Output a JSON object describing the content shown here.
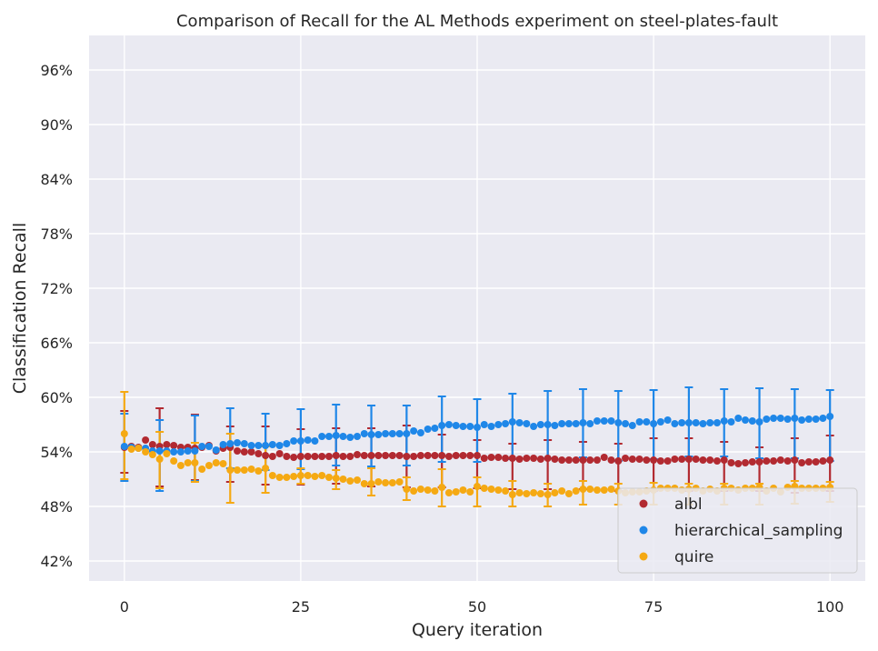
{
  "chart_data": {
    "type": "scatter",
    "title": "Comparison of Recall for the AL Methods experiment on steel-plates-fault",
    "xlabel": "Query iteration",
    "ylabel": "Classification Recall",
    "xlim": [
      -5,
      105
    ],
    "ylim": [
      0.398,
      0.998
    ],
    "xticks": [
      0,
      25,
      50,
      75,
      100
    ],
    "xtick_labels": [
      "0",
      "25",
      "50",
      "75",
      "100"
    ],
    "yticks": [
      0.42,
      0.48,
      0.54,
      0.6,
      0.66,
      0.72,
      0.78,
      0.84,
      0.9,
      0.96
    ],
    "ytick_labels": [
      "42%",
      "48%",
      "54%",
      "60%",
      "66%",
      "72%",
      "78%",
      "84%",
      "90%",
      "96%"
    ],
    "grid": true,
    "legend_position": "bottom-right",
    "errorbar_every": 5,
    "series": [
      {
        "name": "albl",
        "color": "#b22a31",
        "values": [
          0.545,
          0.546,
          0.545,
          0.553,
          0.548,
          0.546,
          0.548,
          0.547,
          0.545,
          0.545,
          0.544,
          0.545,
          0.547,
          0.541,
          0.544,
          0.545,
          0.541,
          0.54,
          0.54,
          0.538,
          0.536,
          0.535,
          0.538,
          0.535,
          0.534,
          0.535,
          0.535,
          0.535,
          0.535,
          0.535,
          0.536,
          0.535,
          0.535,
          0.537,
          0.536,
          0.536,
          0.536,
          0.536,
          0.536,
          0.536,
          0.535,
          0.535,
          0.536,
          0.536,
          0.536,
          0.536,
          0.535,
          0.536,
          0.536,
          0.536,
          0.536,
          0.533,
          0.534,
          0.534,
          0.533,
          0.533,
          0.532,
          0.533,
          0.533,
          0.532,
          0.533,
          0.532,
          0.531,
          0.531,
          0.531,
          0.531,
          0.531,
          0.531,
          0.534,
          0.531,
          0.53,
          0.533,
          0.532,
          0.532,
          0.531,
          0.531,
          0.53,
          0.53,
          0.532,
          0.532,
          0.532,
          0.532,
          0.531,
          0.531,
          0.53,
          0.531,
          0.528,
          0.527,
          0.528,
          0.529,
          0.529,
          0.53,
          0.53,
          0.531,
          0.53,
          0.531,
          0.528,
          0.529,
          0.529,
          0.53,
          0.531
        ],
        "err_low": [
          0.517,
          0.517,
          0.517,
          0.517,
          0.517,
          0.502,
          0.502,
          0.502,
          0.502,
          0.502,
          0.509,
          0.509,
          0.509,
          0.509,
          0.509,
          0.507,
          0.507,
          0.507,
          0.507,
          0.507,
          0.504,
          0.504,
          0.504,
          0.504,
          0.504,
          0.504,
          0.504,
          0.504,
          0.504,
          0.504,
          0.505,
          0.505,
          0.505,
          0.505,
          0.505,
          0.502,
          0.502,
          0.502,
          0.502,
          0.502,
          0.501,
          0.501,
          0.501,
          0.501,
          0.501,
          0.501,
          0.501,
          0.501,
          0.501,
          0.501,
          0.5,
          0.5,
          0.5,
          0.5,
          0.5,
          0.499,
          0.499,
          0.499,
          0.499,
          0.499,
          0.499,
          0.499,
          0.499,
          0.499,
          0.499,
          0.499,
          0.499,
          0.499,
          0.499,
          0.499,
          0.497,
          0.497,
          0.497,
          0.497,
          0.497,
          0.497,
          0.497,
          0.497,
          0.497,
          0.497,
          0.497,
          0.497,
          0.497,
          0.497,
          0.497,
          0.497,
          0.497,
          0.497,
          0.497,
          0.497,
          0.497,
          0.497,
          0.497,
          0.497,
          0.497,
          0.495,
          0.495,
          0.495,
          0.495,
          0.495,
          0.497
        ],
        "err_high": [
          0.585,
          0.585,
          0.585,
          0.585,
          0.585,
          0.588,
          0.588,
          0.588,
          0.588,
          0.588,
          0.581,
          0.581,
          0.581,
          0.581,
          0.581,
          0.568,
          0.568,
          0.568,
          0.568,
          0.568,
          0.568,
          0.568,
          0.568,
          0.568,
          0.568,
          0.565,
          0.565,
          0.565,
          0.565,
          0.565,
          0.566,
          0.566,
          0.566,
          0.566,
          0.566,
          0.566,
          0.566,
          0.566,
          0.566,
          0.566,
          0.569,
          0.569,
          0.569,
          0.569,
          0.569,
          0.559,
          0.559,
          0.559,
          0.559,
          0.559,
          0.553,
          0.553,
          0.553,
          0.553,
          0.553,
          0.549,
          0.549,
          0.549,
          0.549,
          0.549,
          0.553,
          0.553,
          0.553,
          0.553,
          0.553,
          0.551,
          0.551,
          0.551,
          0.551,
          0.551,
          0.549,
          0.549,
          0.549,
          0.549,
          0.549,
          0.555,
          0.555,
          0.555,
          0.555,
          0.555,
          0.555,
          0.555,
          0.555,
          0.555,
          0.555,
          0.551,
          0.551,
          0.551,
          0.551,
          0.551,
          0.545,
          0.545,
          0.545,
          0.545,
          0.545,
          0.555,
          0.555,
          0.555,
          0.555,
          0.555,
          0.558
        ]
      },
      {
        "name": "hierarchical_sampling",
        "color": "#1f87e8",
        "values": [
          0.546,
          0.545,
          0.544,
          0.544,
          0.541,
          0.541,
          0.541,
          0.54,
          0.54,
          0.541,
          0.541,
          0.546,
          0.546,
          0.542,
          0.548,
          0.549,
          0.55,
          0.549,
          0.547,
          0.547,
          0.547,
          0.548,
          0.547,
          0.549,
          0.552,
          0.552,
          0.553,
          0.552,
          0.557,
          0.557,
          0.558,
          0.557,
          0.556,
          0.557,
          0.56,
          0.559,
          0.559,
          0.56,
          0.56,
          0.56,
          0.56,
          0.563,
          0.561,
          0.565,
          0.566,
          0.569,
          0.57,
          0.569,
          0.568,
          0.568,
          0.567,
          0.57,
          0.568,
          0.57,
          0.571,
          0.573,
          0.572,
          0.571,
          0.568,
          0.57,
          0.57,
          0.569,
          0.571,
          0.571,
          0.571,
          0.572,
          0.571,
          0.574,
          0.574,
          0.574,
          0.572,
          0.571,
          0.569,
          0.573,
          0.573,
          0.571,
          0.573,
          0.575,
          0.571,
          0.572,
          0.572,
          0.572,
          0.571,
          0.572,
          0.572,
          0.574,
          0.573,
          0.577,
          0.575,
          0.574,
          0.573,
          0.576,
          0.577,
          0.577,
          0.576,
          0.577,
          0.575,
          0.576,
          0.576,
          0.577,
          0.579
        ],
        "err_low": [
          0.508,
          0.508,
          0.508,
          0.508,
          0.508,
          0.497,
          0.497,
          0.497,
          0.497,
          0.497,
          0.508,
          0.508,
          0.508,
          0.508,
          0.508,
          0.522,
          0.522,
          0.522,
          0.522,
          0.522,
          0.52,
          0.52,
          0.52,
          0.52,
          0.52,
          0.521,
          0.521,
          0.521,
          0.521,
          0.521,
          0.525,
          0.525,
          0.525,
          0.525,
          0.525,
          0.524,
          0.524,
          0.524,
          0.524,
          0.524,
          0.525,
          0.525,
          0.525,
          0.525,
          0.525,
          0.529,
          0.529,
          0.529,
          0.529,
          0.529,
          0.529,
          0.529,
          0.529,
          0.529,
          0.529,
          0.532,
          0.532,
          0.532,
          0.532,
          0.532,
          0.533,
          0.533,
          0.533,
          0.533,
          0.533,
          0.534,
          0.534,
          0.534,
          0.534,
          0.534,
          0.53,
          0.53,
          0.53,
          0.53,
          0.53,
          0.532,
          0.532,
          0.532,
          0.532,
          0.532,
          0.535,
          0.535,
          0.535,
          0.535,
          0.535,
          0.535,
          0.535,
          0.535,
          0.535,
          0.535,
          0.533,
          0.533,
          0.533,
          0.533,
          0.533,
          0.533,
          0.533,
          0.533,
          0.533,
          0.533,
          0.53
        ],
        "err_high": [
          0.582,
          0.582,
          0.582,
          0.582,
          0.582,
          0.575,
          0.575,
          0.575,
          0.575,
          0.575,
          0.58,
          0.58,
          0.58,
          0.58,
          0.58,
          0.588,
          0.588,
          0.588,
          0.588,
          0.588,
          0.582,
          0.582,
          0.582,
          0.582,
          0.582,
          0.587,
          0.587,
          0.587,
          0.587,
          0.587,
          0.592,
          0.592,
          0.592,
          0.592,
          0.592,
          0.591,
          0.591,
          0.591,
          0.591,
          0.591,
          0.591,
          0.591,
          0.591,
          0.591,
          0.591,
          0.601,
          0.601,
          0.601,
          0.601,
          0.601,
          0.598,
          0.598,
          0.598,
          0.598,
          0.598,
          0.604,
          0.604,
          0.604,
          0.604,
          0.604,
          0.607,
          0.607,
          0.607,
          0.607,
          0.607,
          0.609,
          0.609,
          0.609,
          0.609,
          0.609,
          0.607,
          0.607,
          0.607,
          0.607,
          0.607,
          0.608,
          0.608,
          0.608,
          0.608,
          0.608,
          0.611,
          0.611,
          0.611,
          0.611,
          0.611,
          0.609,
          0.609,
          0.609,
          0.609,
          0.609,
          0.61,
          0.61,
          0.61,
          0.61,
          0.61,
          0.609,
          0.609,
          0.609,
          0.609,
          0.609,
          0.608
        ]
      },
      {
        "name": "quire",
        "color": "#f5a913",
        "values": [
          0.56,
          0.543,
          0.544,
          0.54,
          0.537,
          0.532,
          0.538,
          0.53,
          0.525,
          0.528,
          0.528,
          0.521,
          0.525,
          0.528,
          0.527,
          0.52,
          0.52,
          0.52,
          0.521,
          0.519,
          0.522,
          0.514,
          0.512,
          0.512,
          0.513,
          0.514,
          0.514,
          0.513,
          0.514,
          0.512,
          0.511,
          0.51,
          0.508,
          0.509,
          0.505,
          0.505,
          0.507,
          0.506,
          0.506,
          0.507,
          0.499,
          0.497,
          0.499,
          0.498,
          0.497,
          0.501,
          0.495,
          0.496,
          0.498,
          0.496,
          0.502,
          0.5,
          0.499,
          0.498,
          0.497,
          0.493,
          0.495,
          0.494,
          0.495,
          0.494,
          0.493,
          0.495,
          0.497,
          0.494,
          0.497,
          0.499,
          0.499,
          0.498,
          0.498,
          0.499,
          0.497,
          0.495,
          0.496,
          0.496,
          0.497,
          0.498,
          0.5,
          0.5,
          0.5,
          0.498,
          0.499,
          0.5,
          0.497,
          0.499,
          0.497,
          0.5,
          0.5,
          0.498,
          0.5,
          0.5,
          0.501,
          0.497,
          0.5,
          0.496,
          0.501,
          0.502,
          0.5,
          0.5,
          0.5,
          0.5,
          0.501
        ],
        "err_low": [
          0.51,
          0.51,
          0.51,
          0.51,
          0.51,
          0.5,
          0.5,
          0.5,
          0.5,
          0.5,
          0.507,
          0.507,
          0.507,
          0.507,
          0.507,
          0.484,
          0.484,
          0.484,
          0.484,
          0.484,
          0.495,
          0.495,
          0.495,
          0.495,
          0.495,
          0.505,
          0.505,
          0.505,
          0.505,
          0.505,
          0.499,
          0.499,
          0.499,
          0.499,
          0.499,
          0.492,
          0.492,
          0.492,
          0.492,
          0.492,
          0.487,
          0.487,
          0.487,
          0.487,
          0.487,
          0.48,
          0.48,
          0.48,
          0.48,
          0.48,
          0.48,
          0.48,
          0.48,
          0.48,
          0.48,
          0.48,
          0.48,
          0.48,
          0.48,
          0.48,
          0.48,
          0.48,
          0.48,
          0.48,
          0.48,
          0.482,
          0.482,
          0.482,
          0.482,
          0.482,
          0.482,
          0.482,
          0.482,
          0.482,
          0.482,
          0.482,
          0.482,
          0.482,
          0.482,
          0.482,
          0.482,
          0.482,
          0.482,
          0.482,
          0.482,
          0.482,
          0.482,
          0.482,
          0.482,
          0.482,
          0.482,
          0.482,
          0.482,
          0.482,
          0.482,
          0.483,
          0.483,
          0.483,
          0.483,
          0.483,
          0.485
        ],
        "err_high": [
          0.606,
          0.606,
          0.606,
          0.606,
          0.606,
          0.562,
          0.562,
          0.562,
          0.562,
          0.562,
          0.55,
          0.55,
          0.55,
          0.55,
          0.55,
          0.56,
          0.56,
          0.56,
          0.56,
          0.56,
          0.546,
          0.546,
          0.546,
          0.546,
          0.546,
          0.522,
          0.522,
          0.522,
          0.522,
          0.522,
          0.52,
          0.52,
          0.52,
          0.52,
          0.52,
          0.522,
          0.522,
          0.522,
          0.522,
          0.522,
          0.512,
          0.512,
          0.512,
          0.512,
          0.512,
          0.521,
          0.521,
          0.521,
          0.521,
          0.521,
          0.512,
          0.512,
          0.512,
          0.512,
          0.512,
          0.508,
          0.508,
          0.508,
          0.508,
          0.508,
          0.505,
          0.505,
          0.505,
          0.505,
          0.505,
          0.508,
          0.508,
          0.508,
          0.508,
          0.508,
          0.505,
          0.505,
          0.505,
          0.505,
          0.505,
          0.506,
          0.506,
          0.506,
          0.506,
          0.506,
          0.505,
          0.505,
          0.505,
          0.505,
          0.505,
          0.505,
          0.505,
          0.505,
          0.505,
          0.505,
          0.505,
          0.505,
          0.505,
          0.505,
          0.505,
          0.508,
          0.508,
          0.508,
          0.508,
          0.508,
          0.507
        ]
      }
    ]
  }
}
